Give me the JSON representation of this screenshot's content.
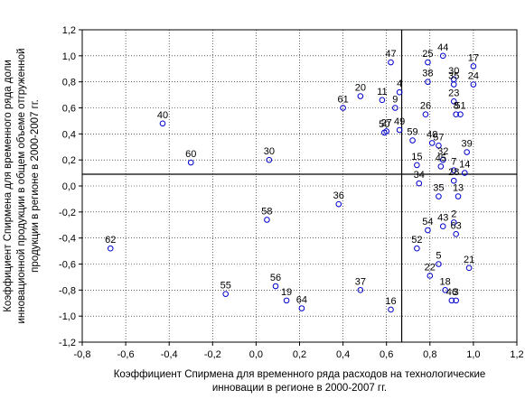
{
  "chart_data": {
    "type": "scatter",
    "xlabel": [
      "Коэффициент Спирмена для временного ряда расходов на технологические",
      "инновации в регионе в 2000-2007 гг."
    ],
    "ylabel": [
      "Коэффициент Спирмена для временного ряда доли",
      "инновационной продукции в общем объеме отгруженной",
      "продукции в регионе в 2000-2007 гг."
    ],
    "xlim": [
      -0.8,
      1.2
    ],
    "ylim": [
      -1.2,
      1.2
    ],
    "xticks": [
      "-0,8",
      "-0,6",
      "-0,4",
      "-0,2",
      "0,0",
      "0,2",
      "0,4",
      "0,6",
      "0,8",
      "1,0",
      "1,2"
    ],
    "yticks": [
      "-1,2",
      "-1,0",
      "-0,8",
      "-0,6",
      "-0,4",
      "-0,2",
      "0,0",
      "0,2",
      "0,4",
      "0,6",
      "0,8",
      "1,0",
      "1,2"
    ],
    "grid": true,
    "reference_lines": {
      "x": 0.67,
      "y": 0.09
    },
    "marker_color": "#0000cc",
    "points": [
      {
        "label": "47",
        "x": 0.62,
        "y": 0.95
      },
      {
        "label": "25",
        "x": 0.79,
        "y": 0.95
      },
      {
        "label": "44",
        "x": 0.86,
        "y": 1.0
      },
      {
        "label": "17",
        "x": 1.0,
        "y": 0.92
      },
      {
        "label": "38",
        "x": 0.79,
        "y": 0.8
      },
      {
        "label": "30",
        "x": 0.91,
        "y": 0.82
      },
      {
        "label": "35",
        "x": 0.91,
        "y": 0.78
      },
      {
        "label": "24",
        "x": 1.0,
        "y": 0.78
      },
      {
        "label": "20",
        "x": 0.48,
        "y": 0.69
      },
      {
        "label": "11",
        "x": 0.58,
        "y": 0.66
      },
      {
        "label": "4",
        "x": 0.66,
        "y": 0.72
      },
      {
        "label": "23",
        "x": 0.91,
        "y": 0.65
      },
      {
        "label": "61",
        "x": 0.4,
        "y": 0.6
      },
      {
        "label": "9",
        "x": 0.64,
        "y": 0.6
      },
      {
        "label": "26",
        "x": 0.78,
        "y": 0.55
      },
      {
        "label": "8",
        "x": 0.92,
        "y": 0.55
      },
      {
        "label": "51",
        "x": 0.94,
        "y": 0.55
      },
      {
        "label": "40",
        "x": -0.43,
        "y": 0.48
      },
      {
        "label": "27",
        "x": 0.6,
        "y": 0.42
      },
      {
        "label": "49",
        "x": 0.66,
        "y": 0.43
      },
      {
        "label": "50",
        "x": 0.59,
        "y": 0.41
      },
      {
        "label": "59",
        "x": 0.72,
        "y": 0.35
      },
      {
        "label": "48",
        "x": 0.81,
        "y": 0.33
      },
      {
        "label": "57",
        "x": 0.84,
        "y": 0.31
      },
      {
        "label": "39",
        "x": 0.97,
        "y": 0.26
      },
      {
        "label": "60",
        "x": -0.3,
        "y": 0.18
      },
      {
        "label": "30",
        "x": 0.06,
        "y": 0.2
      },
      {
        "label": "32",
        "x": 0.86,
        "y": 0.2
      },
      {
        "label": "15",
        "x": 0.74,
        "y": 0.16
      },
      {
        "label": "45",
        "x": 0.85,
        "y": 0.15
      },
      {
        "label": "7",
        "x": 0.91,
        "y": 0.12
      },
      {
        "label": "14",
        "x": 0.96,
        "y": 0.1
      },
      {
        "label": "34",
        "x": 0.75,
        "y": 0.02
      },
      {
        "label": "28",
        "x": 0.91,
        "y": 0.04
      },
      {
        "label": "35",
        "x": 0.84,
        "y": -0.08
      },
      {
        "label": "13",
        "x": 0.93,
        "y": -0.08
      },
      {
        "label": "36",
        "x": 0.38,
        "y": -0.14
      },
      {
        "label": "58",
        "x": 0.05,
        "y": -0.26
      },
      {
        "label": "2",
        "x": 0.91,
        "y": -0.28
      },
      {
        "label": "54",
        "x": 0.79,
        "y": -0.34
      },
      {
        "label": "43",
        "x": 0.86,
        "y": -0.31
      },
      {
        "label": "63",
        "x": 0.92,
        "y": -0.37
      },
      {
        "label": "62",
        "x": -0.67,
        "y": -0.48
      },
      {
        "label": "52",
        "x": 0.74,
        "y": -0.48
      },
      {
        "label": "5",
        "x": 0.84,
        "y": -0.6
      },
      {
        "label": "21",
        "x": 0.98,
        "y": -0.63
      },
      {
        "label": "22",
        "x": 0.8,
        "y": -0.69
      },
      {
        "label": "55",
        "x": -0.14,
        "y": -0.83
      },
      {
        "label": "56",
        "x": 0.09,
        "y": -0.77
      },
      {
        "label": "37",
        "x": 0.48,
        "y": -0.8
      },
      {
        "label": "18",
        "x": 0.87,
        "y": -0.8
      },
      {
        "label": "19",
        "x": 0.14,
        "y": -0.88
      },
      {
        "label": "64",
        "x": 0.21,
        "y": -0.94
      },
      {
        "label": "3",
        "x": 0.92,
        "y": -0.88
      },
      {
        "label": "46",
        "x": 0.9,
        "y": -0.88
      },
      {
        "label": "16",
        "x": 0.62,
        "y": -0.95
      }
    ]
  }
}
